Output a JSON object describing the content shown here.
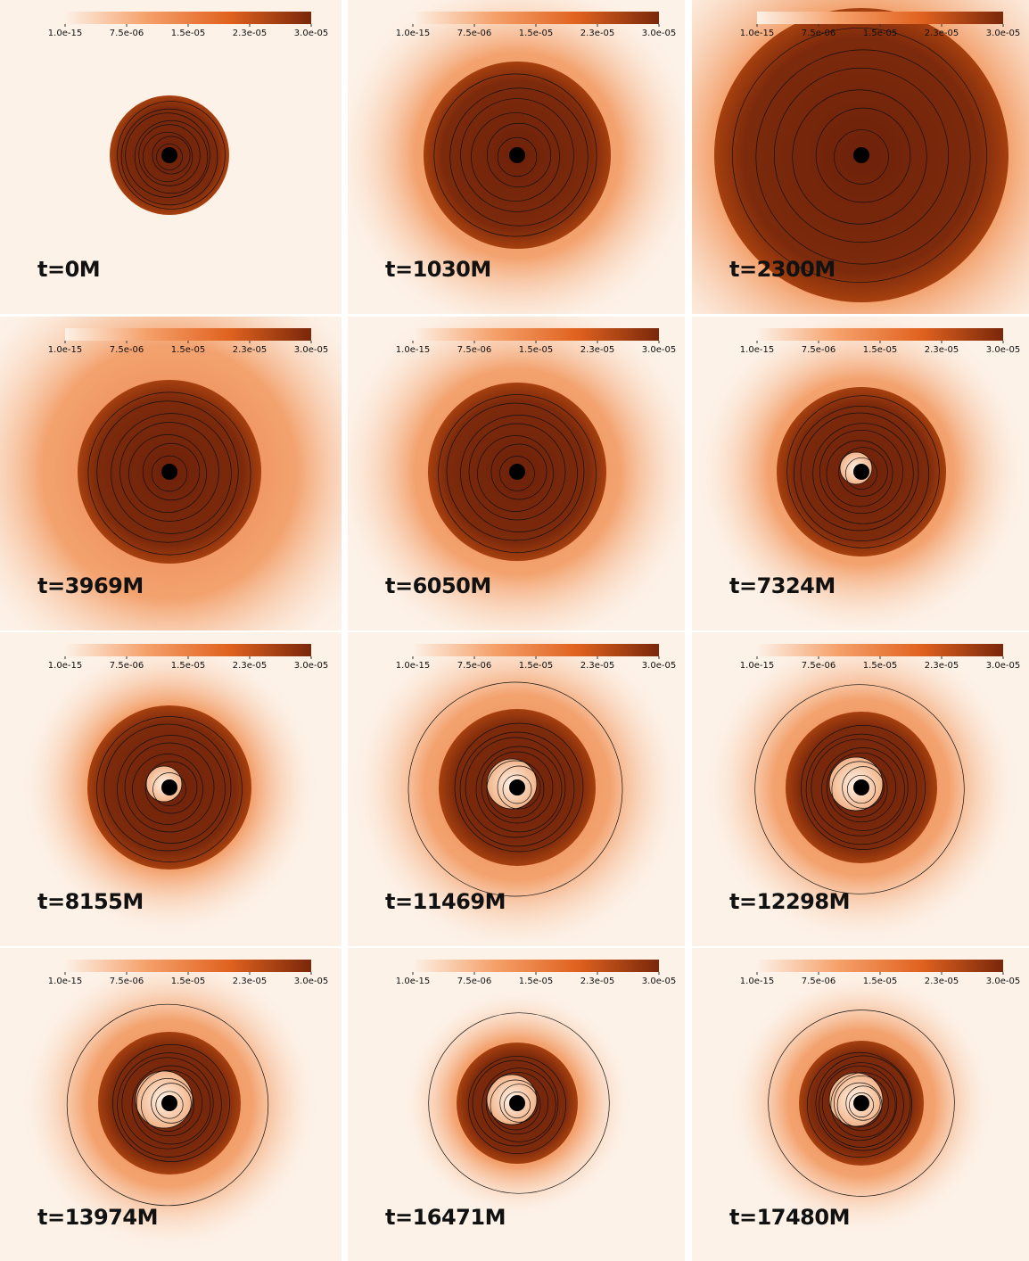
{
  "colorbar": {
    "range": [
      1e-15,
      3e-05
    ],
    "ticks": [
      {
        "value": 1e-15,
        "label": "1.0e-15"
      },
      {
        "value": 7.5e-06,
        "label": "7.5e-06"
      },
      {
        "value": 1.5e-05,
        "label": "1.5e-05"
      },
      {
        "value": 2.25e-05,
        "label": "2.3e-05"
      },
      {
        "value": 3e-05,
        "label": "3.0e-05"
      }
    ],
    "colors": [
      "#fdf1e6",
      "#f5a06a",
      "#e0621f",
      "#7a270a"
    ]
  },
  "panels": [
    {
      "time": "t=0M"
    },
    {
      "time": "t=1030M"
    },
    {
      "time": "t=2300M"
    },
    {
      "time": "t=3969M"
    },
    {
      "time": "t=6050M"
    },
    {
      "time": "t=7324M"
    },
    {
      "time": "t=8155M"
    },
    {
      "time": "t=11469M"
    },
    {
      "time": "t=12298M"
    },
    {
      "time": "t=13974M"
    },
    {
      "time": "t=16471M"
    },
    {
      "time": "t=17480M"
    }
  ]
}
